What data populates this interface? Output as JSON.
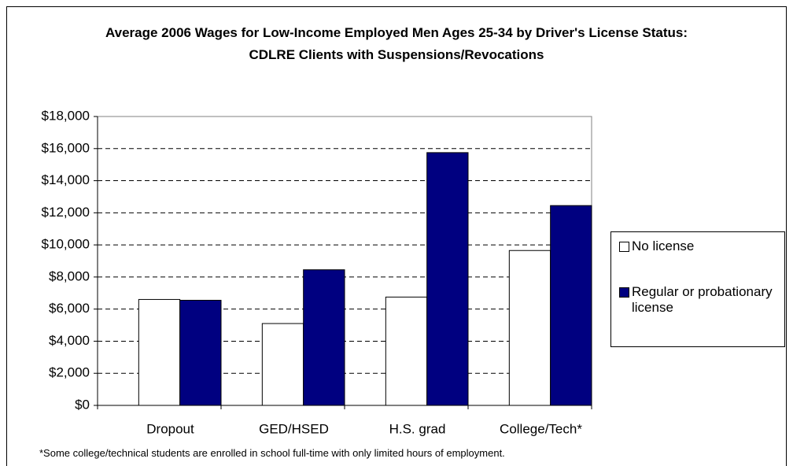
{
  "chart_data": {
    "type": "bar",
    "title": "Average 2006 Wages for Low-Income Employed Men Ages 25-34 by Driver's License Status: CDLRE Clients with Suspensions/Revocations",
    "categories": [
      "Dropout",
      "GED/HSED",
      "H.S. grad",
      "College/Tech*"
    ],
    "series": [
      {
        "name": "No license",
        "color": "#ffffff",
        "values": [
          6600,
          5100,
          6750,
          9650
        ]
      },
      {
        "name": "Regular or probationary license",
        "color": "#000080",
        "values": [
          6550,
          8450,
          15750,
          12450
        ]
      }
    ],
    "ylim": [
      0,
      18000
    ],
    "yticks": [
      {
        "value": 0,
        "label": "$0"
      },
      {
        "value": 2000,
        "label": "$2,000"
      },
      {
        "value": 4000,
        "label": "$4,000"
      },
      {
        "value": 6000,
        "label": "$6,000"
      },
      {
        "value": 8000,
        "label": "$8,000"
      },
      {
        "value": 10000,
        "label": "$10,000"
      },
      {
        "value": 12000,
        "label": "$12,000"
      },
      {
        "value": 14000,
        "label": "$14,000"
      },
      {
        "value": 16000,
        "label": "$16,000"
      },
      {
        "value": 18000,
        "label": "$18,000"
      }
    ],
    "grid": true,
    "legend": "right",
    "footnote": "*Some college/technical students are enrolled in school full-time with only limited hours of employment."
  }
}
